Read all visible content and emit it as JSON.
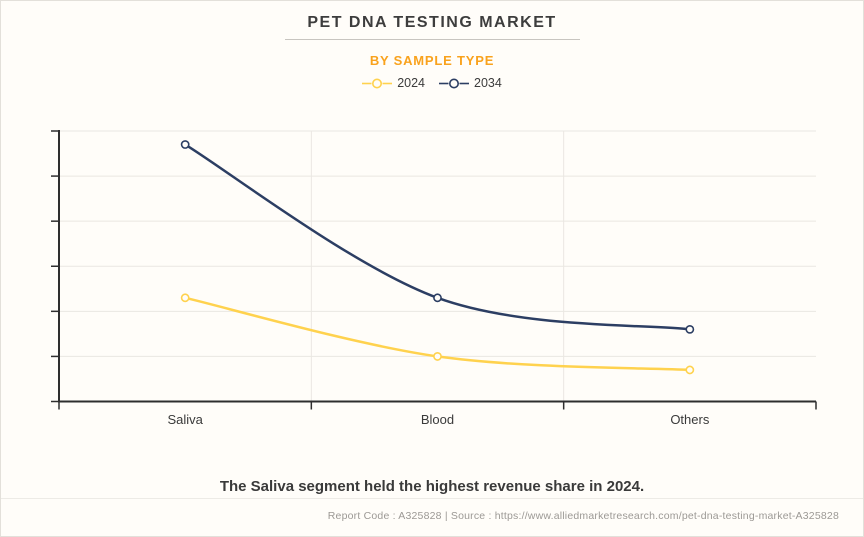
{
  "header": {
    "title": "PET DNA TESTING MARKET",
    "subtitle": "BY SAMPLE TYPE"
  },
  "legend": [
    {
      "label": "2024",
      "color": "#FFD24E",
      "marker": "hollow-circle-with-line"
    },
    {
      "label": "2034",
      "color": "#2C3E63",
      "marker": "hollow-circle-with-line"
    }
  ],
  "chart_data": {
    "type": "line",
    "title": "PET DNA TESTING MARKET",
    "subtitle": "BY SAMPLE TYPE",
    "categories": [
      "Saliva",
      "Blood",
      "Others"
    ],
    "series": [
      {
        "name": "2024",
        "color": "#FFD24E",
        "values": [
          2.3,
          1.0,
          0.7
        ]
      },
      {
        "name": "2034",
        "color": "#2C3E63",
        "values": [
          5.7,
          2.3,
          1.6
        ]
      }
    ],
    "xlabel": "",
    "ylabel": "",
    "ylim": [
      0,
      6
    ],
    "y_gridline_step": 1,
    "y_tick_labels_visible": false,
    "grid": true,
    "line_style": "smooth",
    "marker": "hollow-circle",
    "legend_position": "top-center",
    "note": "y-axis has tick marks but no numeric labels; values are relative grid units read from the plot"
  },
  "caption": "The Saliva segment held the highest revenue share in 2024.",
  "footer": {
    "text": "Report Code : A325828  |  Source : https://www.alliedmarketresearch.com/pet-dna-testing-market-A325828"
  },
  "colors": {
    "background": "#FFFDF9",
    "border": "#E3E0DA",
    "title_text": "#3D3D3D",
    "subtitle_orange": "#F9A21D",
    "axis": "#2E2E2E",
    "grid": "#EAE7E2",
    "category_label": "#3A3A3A",
    "caption_text": "#3A3A3A",
    "footer_text": "#9C9995",
    "series_2024": "#FFD24E",
    "series_2034": "#2C3E63"
  }
}
